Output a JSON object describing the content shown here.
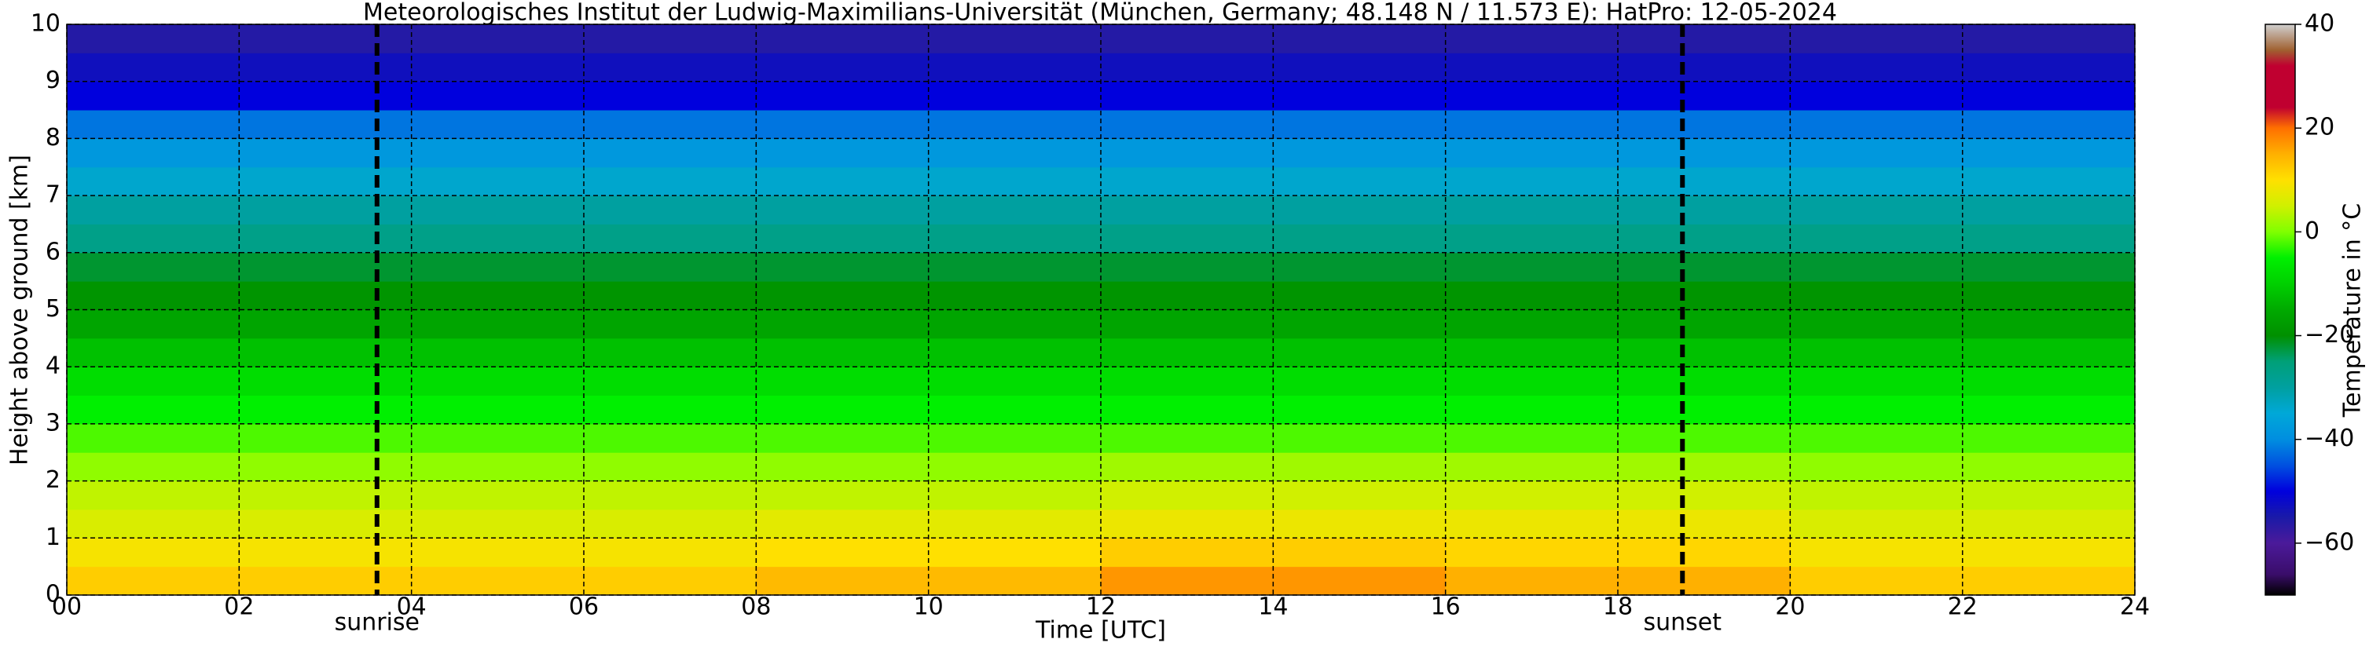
{
  "chart_data": {
    "type": "heatmap",
    "title": "Meteorologisches Institut der Ludwig-Maximilians-Universität (München, Germany; 48.148 N / 11.573 E):    HatPro: 12-05-2024",
    "x_label": "Time [UTC]",
    "y_label": "Height above ground [km]",
    "colorbar_label": "Temperature in °C",
    "x_edges": [
      0,
      4,
      8,
      12,
      16,
      20,
      24
    ],
    "y_edges": [
      0,
      0.5,
      1,
      1.5,
      2,
      2.5,
      3,
      3.5,
      4,
      4.5,
      5,
      5.5,
      6,
      6.5,
      7,
      7.5,
      8,
      8.5,
      9,
      9.5,
      10
    ],
    "z": [
      [
        12,
        12,
        14,
        17,
        15,
        12
      ],
      [
        9,
        9,
        10,
        12,
        11,
        9
      ],
      [
        6,
        6,
        7,
        8,
        8,
        6
      ],
      [
        4,
        4,
        4,
        5,
        5,
        4
      ],
      [
        1,
        1,
        1,
        2,
        2,
        1
      ],
      [
        -2,
        -2,
        -2,
        -2,
        -2,
        -2
      ],
      [
        -5,
        -5,
        -5,
        -5,
        -5,
        -5
      ],
      [
        -8,
        -8,
        -8,
        -8,
        -8,
        -8
      ],
      [
        -12,
        -12,
        -12,
        -12,
        -12,
        -12
      ],
      [
        -16,
        -16,
        -16,
        -16,
        -16,
        -16
      ],
      [
        -19,
        -19,
        -19,
        -19,
        -19,
        -19
      ],
      [
        -22,
        -22,
        -22,
        -22,
        -22,
        -22
      ],
      [
        -27,
        -27,
        -27,
        -27,
        -27,
        -27
      ],
      [
        -30,
        -30,
        -30,
        -30,
        -30,
        -30
      ],
      [
        -34,
        -34,
        -34,
        -34,
        -34,
        -34
      ],
      [
        -38,
        -38,
        -38,
        -38,
        -38,
        -38
      ],
      [
        -42,
        -42,
        -42,
        -42,
        -42,
        -42
      ],
      [
        -50,
        -50,
        -50,
        -50,
        -50,
        -50
      ],
      [
        -53,
        -53,
        -53,
        -53,
        -53,
        -53
      ],
      [
        -56,
        -56,
        -56,
        -56,
        -56,
        -56
      ]
    ],
    "xlim": [
      0,
      24
    ],
    "xticks": [
      {
        "value": 0,
        "label": "00"
      },
      {
        "value": 2,
        "label": "02"
      },
      {
        "value": 4,
        "label": "04"
      },
      {
        "value": 6,
        "label": "06"
      },
      {
        "value": 8,
        "label": "08"
      },
      {
        "value": 10,
        "label": "10"
      },
      {
        "value": 12,
        "label": "12"
      },
      {
        "value": 14,
        "label": "14"
      },
      {
        "value": 16,
        "label": "16"
      },
      {
        "value": 18,
        "label": "18"
      },
      {
        "value": 20,
        "label": "20"
      },
      {
        "value": 22,
        "label": "22"
      },
      {
        "value": 24,
        "label": "24"
      }
    ],
    "ylim": [
      0,
      10
    ],
    "yticks": [
      0,
      1,
      2,
      3,
      4,
      5,
      6,
      7,
      8,
      9,
      10
    ],
    "grid": true,
    "clim": [
      -70,
      40
    ],
    "cticks": [
      {
        "value": -60,
        "label": "−60"
      },
      {
        "value": -40,
        "label": "−40"
      },
      {
        "value": -20,
        "label": "−20"
      },
      {
        "value": 0,
        "label": "0"
      },
      {
        "value": 20,
        "label": "20"
      },
      {
        "value": 40,
        "label": "40"
      }
    ],
    "colorscale": [
      [
        -70,
        "#000000"
      ],
      [
        -66,
        "#3a0d6a"
      ],
      [
        -60,
        "#4b1a9a"
      ],
      [
        -55,
        "#1a1aa8"
      ],
      [
        -50,
        "#0000dd"
      ],
      [
        -45,
        "#0050e0"
      ],
      [
        -40,
        "#008ee0"
      ],
      [
        -35,
        "#00a8d8"
      ],
      [
        -30,
        "#00a0a0"
      ],
      [
        -25,
        "#00a078"
      ],
      [
        -20,
        "#009000"
      ],
      [
        -15,
        "#00aa00"
      ],
      [
        -10,
        "#00d000"
      ],
      [
        -5,
        "#00f000"
      ],
      [
        0,
        "#80ff00"
      ],
      [
        5,
        "#d0f000"
      ],
      [
        10,
        "#ffe000"
      ],
      [
        15,
        "#ffb000"
      ],
      [
        20,
        "#ff7000"
      ],
      [
        24,
        "#c00030"
      ],
      [
        32,
        "#c00030"
      ],
      [
        35,
        "#a06030"
      ],
      [
        40,
        "#d0d0d0"
      ]
    ],
    "annotations": [
      {
        "text": "sunrise",
        "x": 3.6
      },
      {
        "text": "sunset",
        "x": 18.75
      }
    ]
  }
}
